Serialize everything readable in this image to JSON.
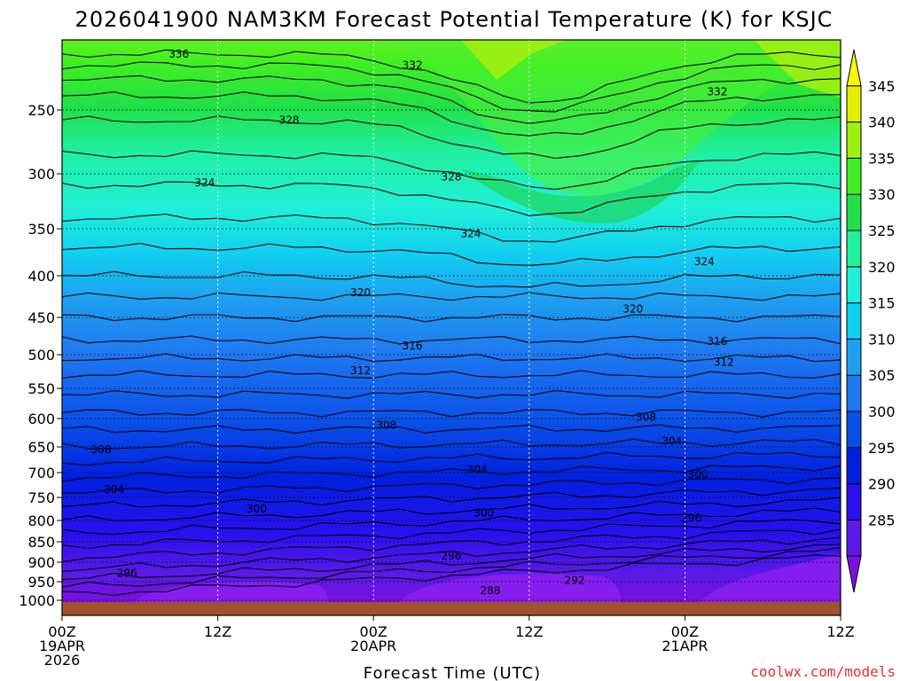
{
  "chart_data": {
    "type": "contour",
    "title": "2026041900 NAM3KM Forecast Potential Temperature (K) for KSJC",
    "xlabel": "Forecast Time (UTC)",
    "ylabel": "",
    "y_ticks": [
      "250",
      "300",
      "350",
      "400",
      "450",
      "500",
      "550",
      "600",
      "650",
      "700",
      "750",
      "800",
      "850",
      "900",
      "950",
      "1000"
    ],
    "y_tick_values": [
      250,
      300,
      350,
      400,
      450,
      500,
      550,
      600,
      650,
      700,
      750,
      800,
      850,
      900,
      950,
      1000
    ],
    "x_ticks": [
      {
        "line1": "00Z",
        "line2": "19APR",
        "line3": "2026",
        "hour": 0
      },
      {
        "line1": "12Z",
        "line2": "",
        "line3": "",
        "hour": 12
      },
      {
        "line1": "00Z",
        "line2": "20APR",
        "line3": "",
        "hour": 24
      },
      {
        "line1": "12Z",
        "line2": "",
        "line3": "",
        "hour": 36
      },
      {
        "line1": "00Z",
        "line2": "21APR",
        "line3": "",
        "hour": 48
      },
      {
        "line1": "12Z",
        "line2": "",
        "line3": "",
        "hour": 60
      }
    ],
    "xlim": [
      0,
      60
    ],
    "ylim_hpa": [
      1000,
      200
    ],
    "colorbar": {
      "ticks": [
        "345",
        "340",
        "335",
        "330",
        "325",
        "320",
        "315",
        "310",
        "305",
        "300",
        "295",
        "290",
        "285"
      ],
      "levels": [
        280,
        285,
        290,
        295,
        300,
        305,
        310,
        315,
        320,
        325,
        330,
        335,
        340,
        345,
        350
      ],
      "colors": [
        "#7a10e0",
        "#5a1ae8",
        "#2a10f0",
        "#0020e0",
        "#0a50e8",
        "#1e78f0",
        "#1ea0f0",
        "#10d0f0",
        "#20f0d8",
        "#20f0a0",
        "#20e048",
        "#40f020",
        "#a0f010",
        "#e0f000",
        "#f8f800"
      ]
    },
    "contour_labels": [
      {
        "text": "336",
        "hour": 9,
        "p": 210
      },
      {
        "text": "332",
        "hour": 27,
        "p": 218
      },
      {
        "text": "332",
        "hour": 50.5,
        "p": 237
      },
      {
        "text": "328",
        "hour": 17.5,
        "p": 258
      },
      {
        "text": "328",
        "hour": 30,
        "p": 303
      },
      {
        "text": "324",
        "hour": 11,
        "p": 308
      },
      {
        "text": "324",
        "hour": 31.5,
        "p": 355
      },
      {
        "text": "324",
        "hour": 49.5,
        "p": 385
      },
      {
        "text": "320",
        "hour": 23,
        "p": 420
      },
      {
        "text": "320",
        "hour": 44,
        "p": 440
      },
      {
        "text": "316",
        "hour": 27,
        "p": 488
      },
      {
        "text": "316",
        "hour": 50.5,
        "p": 482
      },
      {
        "text": "312",
        "hour": 23,
        "p": 524
      },
      {
        "text": "312",
        "hour": 51,
        "p": 511
      },
      {
        "text": "308",
        "hour": 3,
        "p": 655
      },
      {
        "text": "308",
        "hour": 25,
        "p": 612
      },
      {
        "text": "308",
        "hour": 45,
        "p": 598
      },
      {
        "text": "304",
        "hour": 4,
        "p": 734
      },
      {
        "text": "304",
        "hour": 32,
        "p": 694
      },
      {
        "text": "304",
        "hour": 47,
        "p": 640
      },
      {
        "text": "300",
        "hour": 15,
        "p": 775
      },
      {
        "text": "300",
        "hour": 32.5,
        "p": 784
      },
      {
        "text": "300",
        "hour": 49,
        "p": 704
      },
      {
        "text": "296",
        "hour": 30,
        "p": 885
      },
      {
        "text": "296",
        "hour": 48.5,
        "p": 795
      },
      {
        "text": "296",
        "hour": 5,
        "p": 928
      },
      {
        "text": "292",
        "hour": 39.5,
        "p": 947
      },
      {
        "text": "288",
        "hour": 33,
        "p": 974
      }
    ]
  },
  "credit": "coolwx.com/models"
}
